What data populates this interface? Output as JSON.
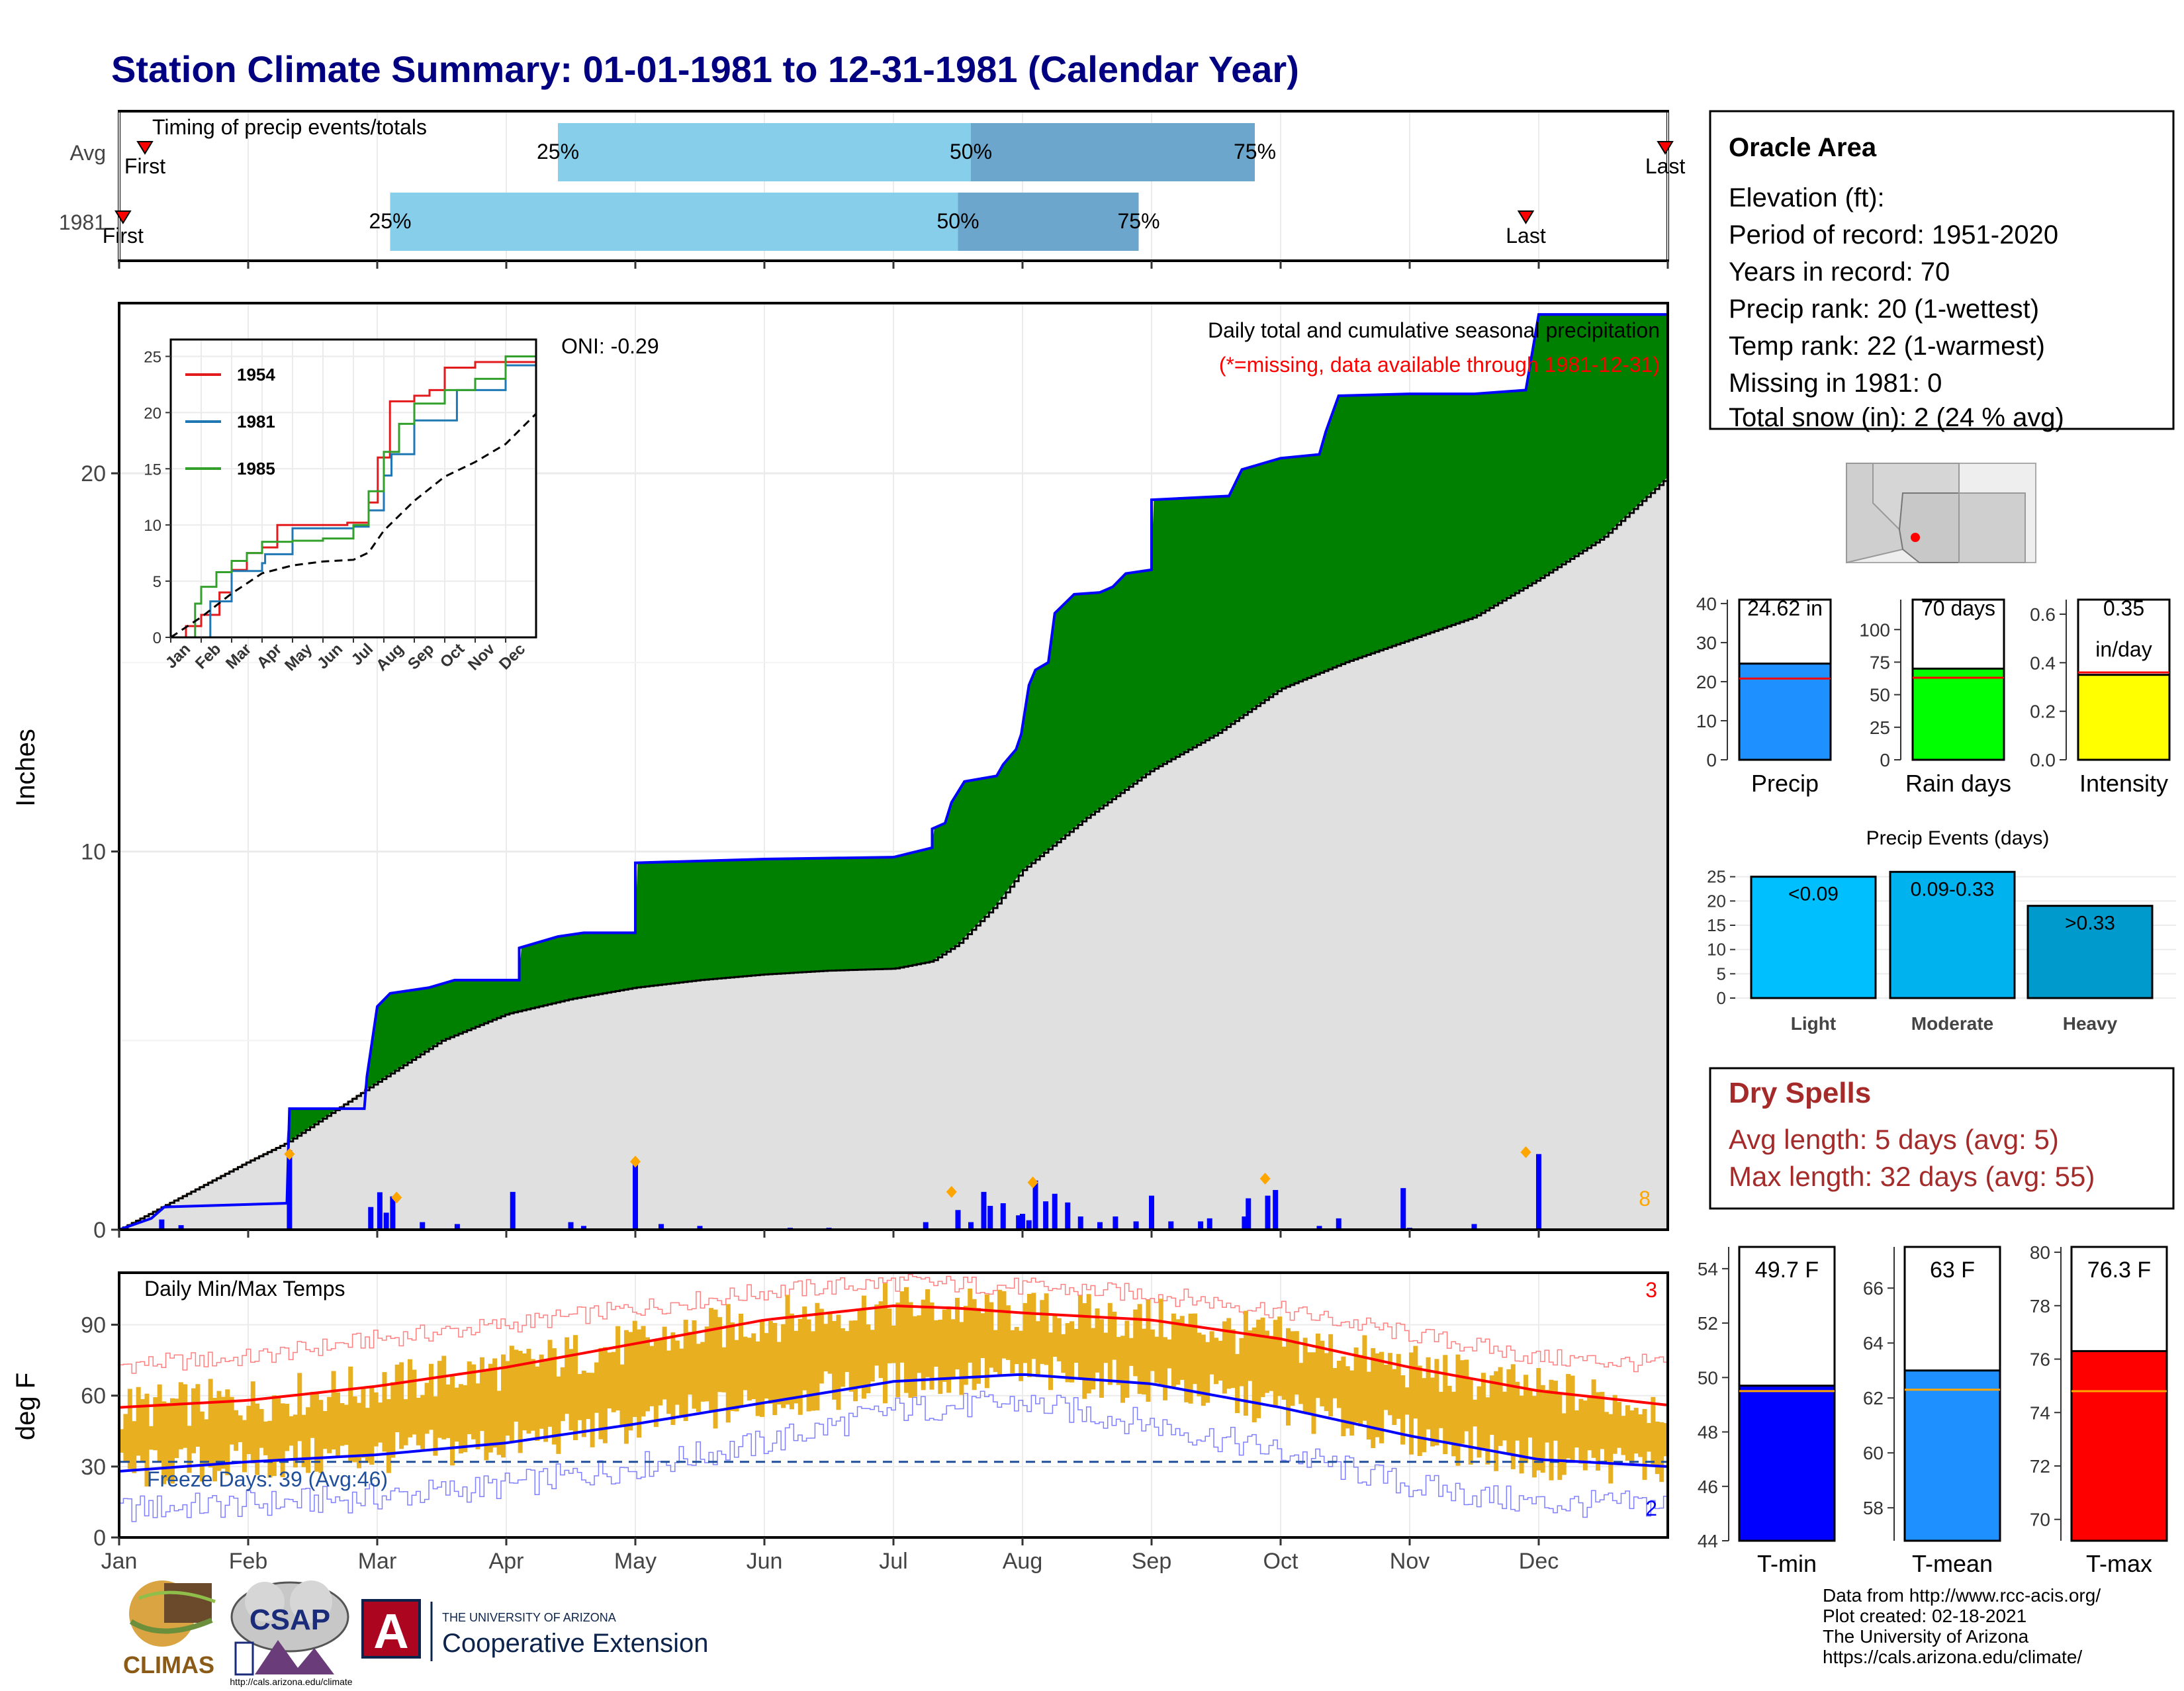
{
  "title": "Station Climate Summary: 01-01-1981 to 12-31-1981 (Calendar Year)",
  "months": [
    "Jan",
    "Feb",
    "Mar",
    "Apr",
    "May",
    "Jun",
    "Jul",
    "Aug",
    "Sep",
    "Oct",
    "Nov",
    "Dec"
  ],
  "colors": {
    "title": "#000080",
    "green": "#008000",
    "brown": "#8B5A16",
    "grey_fill": "#e0e0e0",
    "bar_blue": "#0000ff",
    "light_blue": "#87ceeb",
    "mid_blue": "#6ca6cd",
    "temp_gold": "#e8b020",
    "tmax_line": "#ff0000",
    "tmin_line": "#0000ff",
    "dry_red": "#a52a2a",
    "orange": "#ffa500"
  },
  "timing": {
    "title": "Timing of precip events/totals",
    "rows": [
      {
        "label": "Avg",
        "first_label": "First",
        "last_label": "Last",
        "first": 0.2,
        "p25": 3.4,
        "p50": 6.6,
        "p75": 8.8,
        "last": 11.98
      },
      {
        "label": "1981",
        "first_label": "First",
        "last_label": "Last",
        "first": 0.03,
        "p25": 2.1,
        "p50": 6.5,
        "p75": 7.9,
        "last": 10.9
      }
    ],
    "pct_labels": [
      "25%",
      "50%",
      "75%"
    ]
  },
  "precip": {
    "ylabel": "Inches",
    "caption": "Daily total and cumulative seasonal precipitation",
    "missing_note": "(*=missing, data available through 1981-12-31)",
    "oni": "ONI: -0.29",
    "ylim": [
      0,
      24.5
    ],
    "yticks": [
      0,
      10,
      20
    ],
    "count_label": "8",
    "cumulative_1981": [
      [
        0,
        0
      ],
      [
        0.25,
        0.3
      ],
      [
        0.35,
        0.6
      ],
      [
        1.3,
        0.7
      ],
      [
        1.32,
        3.2
      ],
      [
        1.9,
        3.2
      ],
      [
        1.92,
        4.05
      ],
      [
        2.0,
        5.9
      ],
      [
        2.1,
        6.25
      ],
      [
        2.4,
        6.4
      ],
      [
        2.6,
        6.6
      ],
      [
        3.1,
        6.6
      ],
      [
        3.1,
        7.45
      ],
      [
        3.4,
        7.75
      ],
      [
        3.6,
        7.85
      ],
      [
        4.0,
        7.85
      ],
      [
        4.0,
        9.7
      ],
      [
        5.0,
        9.8
      ],
      [
        6.0,
        9.85
      ],
      [
        6.3,
        10.1
      ],
      [
        6.3,
        10.6
      ],
      [
        6.4,
        10.75
      ],
      [
        6.45,
        11.3
      ],
      [
        6.55,
        11.85
      ],
      [
        6.8,
        12.0
      ],
      [
        6.85,
        12.3
      ],
      [
        6.95,
        12.7
      ],
      [
        6.99,
        13.1
      ],
      [
        7.05,
        14.4
      ],
      [
        7.1,
        14.8
      ],
      [
        7.2,
        15.0
      ],
      [
        7.25,
        16.3
      ],
      [
        7.4,
        16.8
      ],
      [
        7.6,
        16.85
      ],
      [
        7.7,
        17.0
      ],
      [
        7.8,
        17.35
      ],
      [
        7.9,
        17.4
      ],
      [
        8.0,
        17.45
      ],
      [
        8.0,
        19.3
      ],
      [
        8.6,
        19.4
      ],
      [
        8.7,
        20.1
      ],
      [
        9.0,
        20.4
      ],
      [
        9.3,
        20.5
      ],
      [
        9.35,
        21.1
      ],
      [
        9.45,
        22.05
      ],
      [
        10.0,
        22.1
      ],
      [
        10.5,
        22.1
      ],
      [
        10.9,
        22.2
      ],
      [
        11.0,
        24.2
      ],
      [
        12.0,
        24.2
      ]
    ],
    "cumulative_avg": [
      [
        0,
        0
      ],
      [
        1.0,
        1.8
      ],
      [
        1.3,
        2.3
      ],
      [
        2.0,
        3.9
      ],
      [
        2.5,
        5.0
      ],
      [
        3.0,
        5.7
      ],
      [
        3.5,
        6.1
      ],
      [
        4.0,
        6.4
      ],
      [
        4.5,
        6.6
      ],
      [
        5.0,
        6.75
      ],
      [
        5.5,
        6.85
      ],
      [
        6.0,
        6.9
      ],
      [
        6.3,
        7.1
      ],
      [
        6.5,
        7.55
      ],
      [
        6.8,
        8.6
      ],
      [
        7.0,
        9.5
      ],
      [
        7.5,
        10.9
      ],
      [
        8.0,
        12.15
      ],
      [
        8.5,
        13.1
      ],
      [
        9.0,
        14.3
      ],
      [
        9.5,
        15.0
      ],
      [
        10.0,
        15.6
      ],
      [
        10.5,
        16.2
      ],
      [
        11.0,
        17.2
      ],
      [
        11.5,
        18.3
      ],
      [
        12.0,
        19.9
      ]
    ],
    "daily_bars": [
      [
        1.32,
        2.1
      ],
      [
        0.33,
        0.27
      ],
      [
        0.48,
        0.12
      ],
      [
        2.02,
        0.99
      ],
      [
        2.12,
        0.88
      ],
      [
        1.95,
        0.6
      ],
      [
        2.07,
        0.45
      ],
      [
        2.35,
        0.2
      ],
      [
        2.62,
        0.15
      ],
      [
        3.05,
        1.0
      ],
      [
        3.5,
        0.2
      ],
      [
        3.6,
        0.1
      ],
      [
        4.0,
        1.85
      ],
      [
        4.2,
        0.15
      ],
      [
        4.5,
        0.1
      ],
      [
        5.2,
        0.05
      ],
      [
        5.5,
        0.05
      ],
      [
        6.25,
        0.2
      ],
      [
        6.5,
        0.52
      ],
      [
        6.6,
        0.2
      ],
      [
        6.7,
        1.0
      ],
      [
        6.75,
        0.63
      ],
      [
        6.85,
        0.7
      ],
      [
        6.97,
        0.38
      ],
      [
        7.0,
        0.42
      ],
      [
        7.05,
        0.25
      ],
      [
        7.1,
        1.3
      ],
      [
        7.18,
        0.75
      ],
      [
        7.25,
        0.95
      ],
      [
        7.35,
        0.72
      ],
      [
        7.45,
        0.35
      ],
      [
        7.6,
        0.2
      ],
      [
        7.72,
        0.35
      ],
      [
        7.88,
        0.22
      ],
      [
        8.0,
        0.9
      ],
      [
        8.15,
        0.22
      ],
      [
        8.38,
        0.22
      ],
      [
        8.45,
        0.3
      ],
      [
        8.72,
        0.35
      ],
      [
        8.75,
        0.83
      ],
      [
        8.9,
        0.9
      ],
      [
        8.96,
        1.05
      ],
      [
        9.3,
        0.1
      ],
      [
        9.45,
        0.3
      ],
      [
        9.95,
        1.1
      ],
      [
        10.0,
        0.05
      ],
      [
        10.5,
        0.15
      ],
      [
        11.0,
        2.0
      ]
    ],
    "orange_markers": [
      [
        1.32,
        2.0
      ],
      [
        2.15,
        0.85
      ],
      [
        4.0,
        1.8
      ],
      [
        6.45,
        1.0
      ],
      [
        7.08,
        1.25
      ],
      [
        8.88,
        1.35
      ],
      [
        10.9,
        2.05
      ]
    ]
  },
  "inset": {
    "yticks": [
      0,
      5,
      10,
      15,
      20,
      25
    ],
    "ylim": [
      0,
      26.5
    ],
    "month_labels": [
      "Jan",
      "Feb",
      "Mar",
      "Apr",
      "May",
      "Jun",
      "Jul",
      "Aug",
      "Sep",
      "Oct",
      "Nov",
      "Dec"
    ],
    "series": [
      {
        "name": "1954",
        "color": "#e31a1c",
        "points": [
          [
            0,
            0
          ],
          [
            0.5,
            1
          ],
          [
            1,
            2
          ],
          [
            1.6,
            4
          ],
          [
            2,
            6
          ],
          [
            2.5,
            7.5
          ],
          [
            3,
            8
          ],
          [
            3.5,
            10
          ],
          [
            4,
            10
          ],
          [
            5,
            10
          ],
          [
            5.8,
            10.2
          ],
          [
            6.5,
            12
          ],
          [
            6.8,
            16
          ],
          [
            7.2,
            21
          ],
          [
            8,
            21.5
          ],
          [
            8.5,
            22
          ],
          [
            9,
            24
          ],
          [
            10,
            24.5
          ],
          [
            11,
            24.5
          ],
          [
            12,
            25
          ]
        ]
      },
      {
        "name": "1981",
        "color": "#1f78b4",
        "points": [
          [
            0,
            0
          ],
          [
            1.3,
            3.2
          ],
          [
            2,
            5.9
          ],
          [
            3,
            6.6
          ],
          [
            3.1,
            7.4
          ],
          [
            4,
            9.7
          ],
          [
            6,
            9.85
          ],
          [
            6.5,
            11.3
          ],
          [
            7,
            14.4
          ],
          [
            7.25,
            16.3
          ],
          [
            8,
            19.3
          ],
          [
            9.4,
            22
          ],
          [
            11,
            24.2
          ],
          [
            12,
            24.2
          ]
        ]
      },
      {
        "name": "1985",
        "color": "#33a02c",
        "points": [
          [
            0,
            0
          ],
          [
            0.8,
            3
          ],
          [
            1,
            4.5
          ],
          [
            1.5,
            5.8
          ],
          [
            2,
            6.8
          ],
          [
            2.5,
            7.5
          ],
          [
            3,
            8.5
          ],
          [
            4,
            8.6
          ],
          [
            5,
            8.8
          ],
          [
            6,
            10
          ],
          [
            6.5,
            13
          ],
          [
            7,
            16.5
          ],
          [
            7.5,
            19
          ],
          [
            8,
            20.8
          ],
          [
            9,
            22
          ],
          [
            10,
            23
          ],
          [
            11,
            25
          ],
          [
            12,
            26.5
          ]
        ]
      },
      {
        "name": "avg",
        "color": "#000000",
        "dashed": true,
        "points": [
          [
            0,
            0
          ],
          [
            1,
            1.8
          ],
          [
            2,
            3.9
          ],
          [
            3,
            5.7
          ],
          [
            4,
            6.4
          ],
          [
            5,
            6.75
          ],
          [
            6,
            6.9
          ],
          [
            6.5,
            7.55
          ],
          [
            7,
            9.5
          ],
          [
            8,
            12.15
          ],
          [
            9,
            14.3
          ],
          [
            10,
            15.6
          ],
          [
            11,
            17.2
          ],
          [
            12,
            19.9
          ]
        ]
      }
    ]
  },
  "temps": {
    "ylabel": "deg F",
    "title": "Daily Min/Max Temps",
    "freeze_label": "Freeze Days: 39 (Avg:46)",
    "count_hi": "3",
    "count_lo": "2",
    "ylim": [
      0,
      112
    ],
    "yticks": [
      0,
      30,
      60,
      90
    ],
    "freeze_line": 32,
    "avg_tmax": [
      [
        0,
        55
      ],
      [
        1,
        58
      ],
      [
        2,
        64
      ],
      [
        3,
        72
      ],
      [
        4,
        82
      ],
      [
        5,
        92
      ],
      [
        6,
        98
      ],
      [
        6.5,
        97
      ],
      [
        7,
        95
      ],
      [
        8,
        92
      ],
      [
        9,
        84
      ],
      [
        10,
        72
      ],
      [
        11,
        62
      ],
      [
        12,
        56
      ]
    ],
    "avg_tmin": [
      [
        0,
        28
      ],
      [
        1,
        32
      ],
      [
        2,
        35
      ],
      [
        3,
        40
      ],
      [
        4,
        48
      ],
      [
        5,
        57
      ],
      [
        6,
        66
      ],
      [
        7,
        69
      ],
      [
        8,
        65
      ],
      [
        9,
        55
      ],
      [
        10,
        43
      ],
      [
        11,
        33
      ],
      [
        12,
        30
      ]
    ],
    "record_hi": [
      [
        0,
        73
      ],
      [
        1,
        76
      ],
      [
        2,
        84
      ],
      [
        3,
        90
      ],
      [
        4,
        97
      ],
      [
        5,
        104
      ],
      [
        6,
        108
      ],
      [
        7,
        106
      ],
      [
        8,
        103
      ],
      [
        9,
        96
      ],
      [
        10,
        86
      ],
      [
        11,
        76
      ],
      [
        12,
        73
      ]
    ],
    "record_lo": [
      [
        0,
        12
      ],
      [
        1,
        14
      ],
      [
        2,
        17
      ],
      [
        3,
        22
      ],
      [
        4,
        30
      ],
      [
        5,
        40
      ],
      [
        6,
        54
      ],
      [
        7,
        57
      ],
      [
        8,
        48
      ],
      [
        9,
        36
      ],
      [
        10,
        22
      ],
      [
        11,
        14
      ],
      [
        12,
        14
      ]
    ]
  },
  "station": {
    "name": "Oracle Area",
    "lines": [
      "Elevation (ft):",
      "Period of record: 1951-2020",
      "Years in record: 70",
      "Precip rank: 20 (1-wettest)",
      "Temp rank: 22 (1-warmest)",
      "Missing in 1981: 0",
      "Total snow (in): 2 (24 % avg)"
    ]
  },
  "mini_bars": [
    {
      "label": "Precip",
      "value_label": "24.62 in",
      "value": 24.62,
      "avg": 20.8,
      "ylim": [
        0,
        41
      ],
      "yticks": [
        "0",
        "10",
        "20",
        "30",
        "40"
      ],
      "ytick_vals": [
        0,
        10,
        20,
        30,
        40
      ],
      "color": "#1e90ff"
    },
    {
      "label": "Rain days",
      "value_label": "70 days",
      "value": 70,
      "avg": 63,
      "ylim": [
        0,
        123
      ],
      "yticks": [
        "0",
        "25",
        "50",
        "75",
        "100"
      ],
      "ytick_vals": [
        0,
        25,
        50,
        75,
        100
      ],
      "color": "#00ff00"
    },
    {
      "label": "Intensity",
      "value_label": "0.35",
      "value_label2": "in/day",
      "value": 0.35,
      "avg": 0.36,
      "ylim": [
        0,
        0.66
      ],
      "yticks": [
        "0.0",
        "0.2",
        "0.4",
        "0.6"
      ],
      "ytick_vals": [
        0,
        0.2,
        0.4,
        0.6
      ],
      "color": "#ffff00"
    }
  ],
  "events": {
    "title": "Precip Events (days)",
    "yticks": [
      0,
      5,
      10,
      15,
      20,
      25
    ],
    "ylim": [
      0,
      27
    ],
    "bars": [
      {
        "label": "Light",
        "range": "<0.09",
        "value": 25,
        "color": "#00bfff"
      },
      {
        "label": "Moderate",
        "range": "0.09-0.33",
        "value": 26,
        "color": "#00b2ee"
      },
      {
        "label": "Heavy",
        "range": ">0.33",
        "value": 19,
        "color": "#009acd"
      }
    ]
  },
  "dry": {
    "title": "Dry Spells",
    "avg_line": "Avg length: 5 days (avg: 5)",
    "max_line": "Max length: 32 days (avg: 55)"
  },
  "temp_bars": [
    {
      "label": "T-min",
      "value_label": "49.7 F",
      "value": 49.7,
      "avg": 49.5,
      "ylim": [
        44,
        54.8
      ],
      "yticks": [
        44,
        46,
        48,
        50,
        52,
        54
      ],
      "color": "#0000ff"
    },
    {
      "label": "T-mean",
      "value_label": "63 F",
      "value": 63.0,
      "avg": 62.3,
      "ylim": [
        56.8,
        67.5
      ],
      "yticks": [
        58,
        60,
        62,
        64,
        66
      ],
      "color": "#1e90ff"
    },
    {
      "label": "T-max",
      "value_label": "76.3 F",
      "value": 76.3,
      "avg": 74.8,
      "ylim": [
        69.2,
        80.2
      ],
      "yticks": [
        70,
        72,
        74,
        76,
        78,
        80
      ],
      "color": "#ff0000"
    }
  ],
  "footer": {
    "lines": [
      "Data from http://www.rcc-acis.org/",
      "Plot created: 02-18-2021",
      "The University of Arizona",
      "https://cals.arizona.edu/climate/"
    ],
    "climas": "CLIMAS",
    "csap": "CSAP",
    "csap_url": "http://cals.arizona.edu/climate",
    "ua_small": "THE UNIVERSITY OF ARIZONA",
    "ua_big": "Cooperative Extension"
  }
}
